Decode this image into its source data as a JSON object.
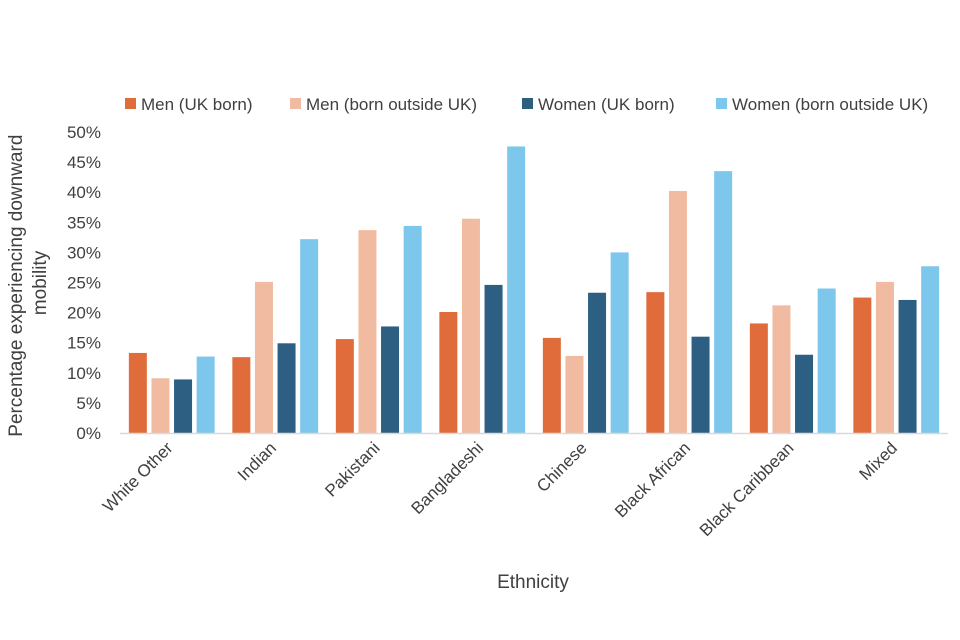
{
  "chart_data": {
    "type": "bar",
    "title": "",
    "xlabel": "Ethnicity",
    "ylabel_lines": [
      "Percentage experiencing downward",
      "mobility"
    ],
    "ylim": [
      0,
      0.5
    ],
    "y_ticks": [
      0,
      0.05,
      0.1,
      0.15,
      0.2,
      0.25,
      0.3,
      0.35,
      0.4,
      0.45,
      0.5
    ],
    "y_tick_labels": [
      "0%",
      "5%",
      "10%",
      "15%",
      "20%",
      "25%",
      "30%",
      "35%",
      "40%",
      "45%",
      "50%"
    ],
    "grid": false,
    "legend_position": "top",
    "categories": [
      "White Other",
      "Indian",
      "Pakistani",
      "Bangladeshi",
      "Chinese",
      "Black African",
      "Black Caribbean",
      "Mixed"
    ],
    "series": [
      {
        "name": "Men (UK born)",
        "color": "#E06C3C",
        "values": [
          0.133,
          0.126,
          0.156,
          0.201,
          0.158,
          0.234,
          0.182,
          0.225
        ]
      },
      {
        "name": "Men (born outside UK)",
        "color": "#F0BBA0",
        "values": [
          0.091,
          0.251,
          0.337,
          0.356,
          0.128,
          0.402,
          0.212,
          0.251
        ]
      },
      {
        "name": "Women (UK born)",
        "color": "#2C5F82",
        "values": [
          0.089,
          0.149,
          0.177,
          0.246,
          0.233,
          0.16,
          0.13,
          0.221
        ]
      },
      {
        "name": "Women (born outside UK)",
        "color": "#7DC7EC",
        "values": [
          0.127,
          0.322,
          0.344,
          0.476,
          0.3,
          0.435,
          0.24,
          0.277
        ]
      }
    ]
  }
}
